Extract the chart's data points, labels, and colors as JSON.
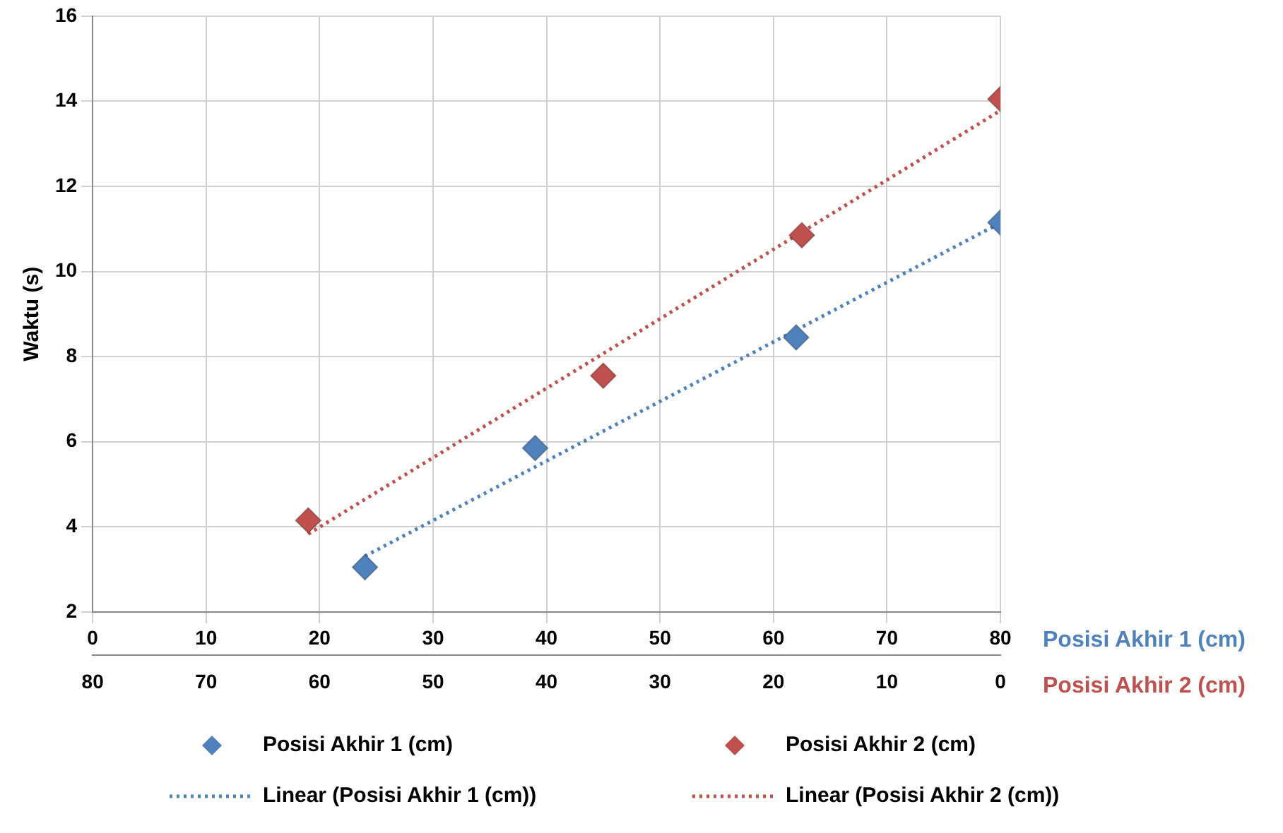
{
  "chart_data": {
    "type": "scatter",
    "ylabel": "Waktu (s)",
    "xlabel": "Posisi Akhir 1 (cm)",
    "x2label": "Posisi Akhir 2 (cm)",
    "xlim": [
      0,
      80
    ],
    "xticks": [
      0,
      10,
      20,
      30,
      40,
      50,
      60,
      70,
      80
    ],
    "x2lim": [
      80,
      0
    ],
    "x2ticks": [
      80,
      70,
      60,
      50,
      40,
      30,
      20,
      10,
      0
    ],
    "ylim": [
      2,
      16
    ],
    "yticks": [
      2,
      4,
      6,
      8,
      10,
      12,
      14,
      16
    ],
    "grid": true,
    "legend": "bottom",
    "marker": "diamond",
    "series": [
      {
        "name": "Posisi Akhir 1 (cm)",
        "color": "#4f81bd",
        "x": [
          24,
          39,
          62,
          80
        ],
        "values": [
          3.05,
          5.85,
          8.45,
          11.15
        ]
      },
      {
        "name": "Posisi Akhir 2 (cm)",
        "color": "#c0504d",
        "axis": "x2",
        "x": [
          61,
          35,
          17.5,
          0
        ],
        "values": [
          4.15,
          7.55,
          10.85,
          14.05
        ]
      },
      {
        "name": "Linear (Posisi Akhir 1 (cm))",
        "type": "line",
        "color": "#4f81bd",
        "line_style": "dotted",
        "marker": "none",
        "x": [
          24,
          80
        ],
        "values": [
          3.31,
          11.14
        ]
      },
      {
        "name": "Linear (Posisi Akhir 2 (cm))",
        "type": "line",
        "color": "#c0504d",
        "line_style": "dotted",
        "marker": "none",
        "axis": "x2",
        "x": [
          61,
          0
        ],
        "values": [
          3.83,
          13.78
        ]
      }
    ]
  }
}
